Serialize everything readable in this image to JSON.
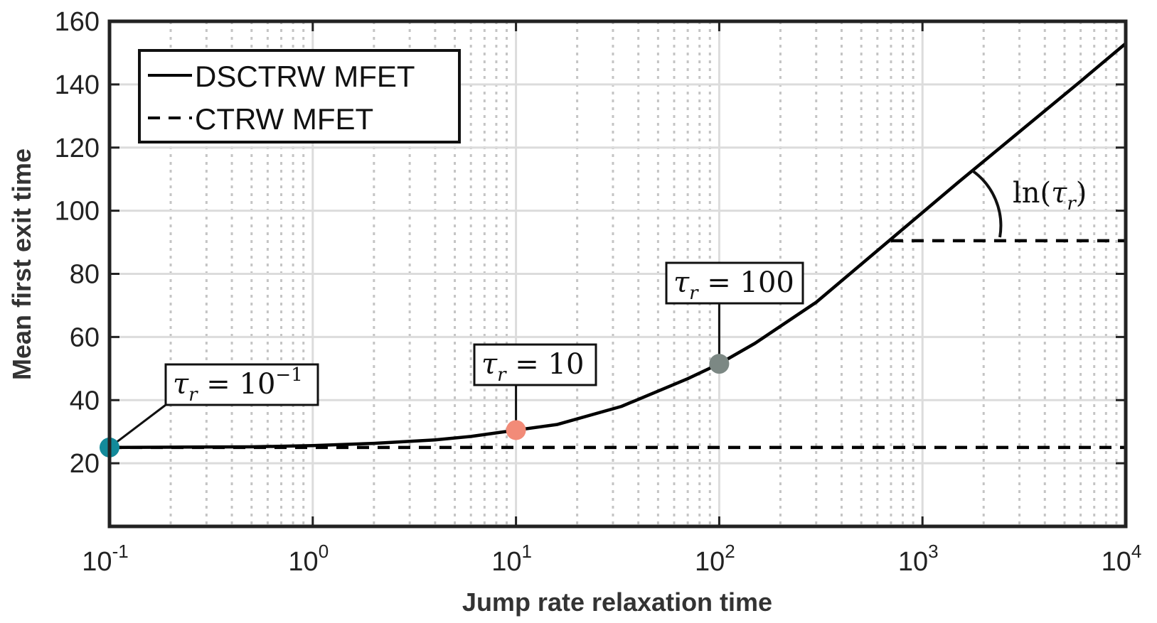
{
  "chart_data": {
    "type": "line",
    "xlabel": "Jump rate relaxation time",
    "ylabel": "Mean first exit time",
    "xscale": "log",
    "xlim": [
      0.1,
      10000
    ],
    "ylim": [
      0,
      160
    ],
    "grid": true,
    "x_ticks": [
      {
        "value": 0.1,
        "base": "10",
        "exp": "-1"
      },
      {
        "value": 1,
        "base": "10",
        "exp": "0"
      },
      {
        "value": 10,
        "base": "10",
        "exp": "1"
      },
      {
        "value": 100,
        "base": "10",
        "exp": "2"
      },
      {
        "value": 1000,
        "base": "10",
        "exp": "3"
      },
      {
        "value": 10000,
        "base": "10",
        "exp": "4"
      }
    ],
    "y_ticks": [
      20,
      40,
      60,
      80,
      100,
      120,
      140,
      160
    ],
    "legend": {
      "position": "top-left",
      "entries": [
        "DSCTRW MFET",
        "CTRW MFET"
      ]
    },
    "series": [
      {
        "name": "DSCTRW MFET",
        "style": "solid",
        "color": "#000000",
        "x": [
          0.1,
          0.2,
          0.5,
          1,
          2,
          4,
          6,
          10,
          16,
          33,
          70,
          100,
          150,
          300,
          700,
          1500,
          3000,
          6000,
          10000
        ],
        "y": [
          25,
          25.1,
          25.2,
          25.6,
          26.3,
          27.4,
          28.5,
          30.5,
          32.3,
          38,
          46.8,
          51.5,
          58,
          71,
          91,
          109,
          125,
          141,
          153
        ]
      },
      {
        "name": "CTRW MFET",
        "style": "dashed",
        "color": "#000000",
        "x": [
          0.1,
          10000
        ],
        "y": [
          25,
          25
        ]
      }
    ],
    "reference_line": {
      "style": "dashed",
      "x": [
        700,
        10000
      ],
      "y": [
        90.5,
        90.5
      ]
    },
    "markers": [
      {
        "x": 0.1,
        "y": 25,
        "color": "#138a9a",
        "label": "τ",
        "sub": "r",
        "eq": " = 10",
        "sup": "−1"
      },
      {
        "x": 10,
        "y": 30.5,
        "color": "#f28b78",
        "label": "τ",
        "sub": "r",
        "eq": " = 10",
        "sup": ""
      },
      {
        "x": 100,
        "y": 51.5,
        "color": "#7c8884",
        "label": "τ",
        "sub": "r",
        "eq": " = 100",
        "sup": ""
      }
    ],
    "slope_annotation": {
      "prefix": "ln(",
      "symbol": "τ",
      "sub": "r",
      "suffix": ")"
    }
  }
}
